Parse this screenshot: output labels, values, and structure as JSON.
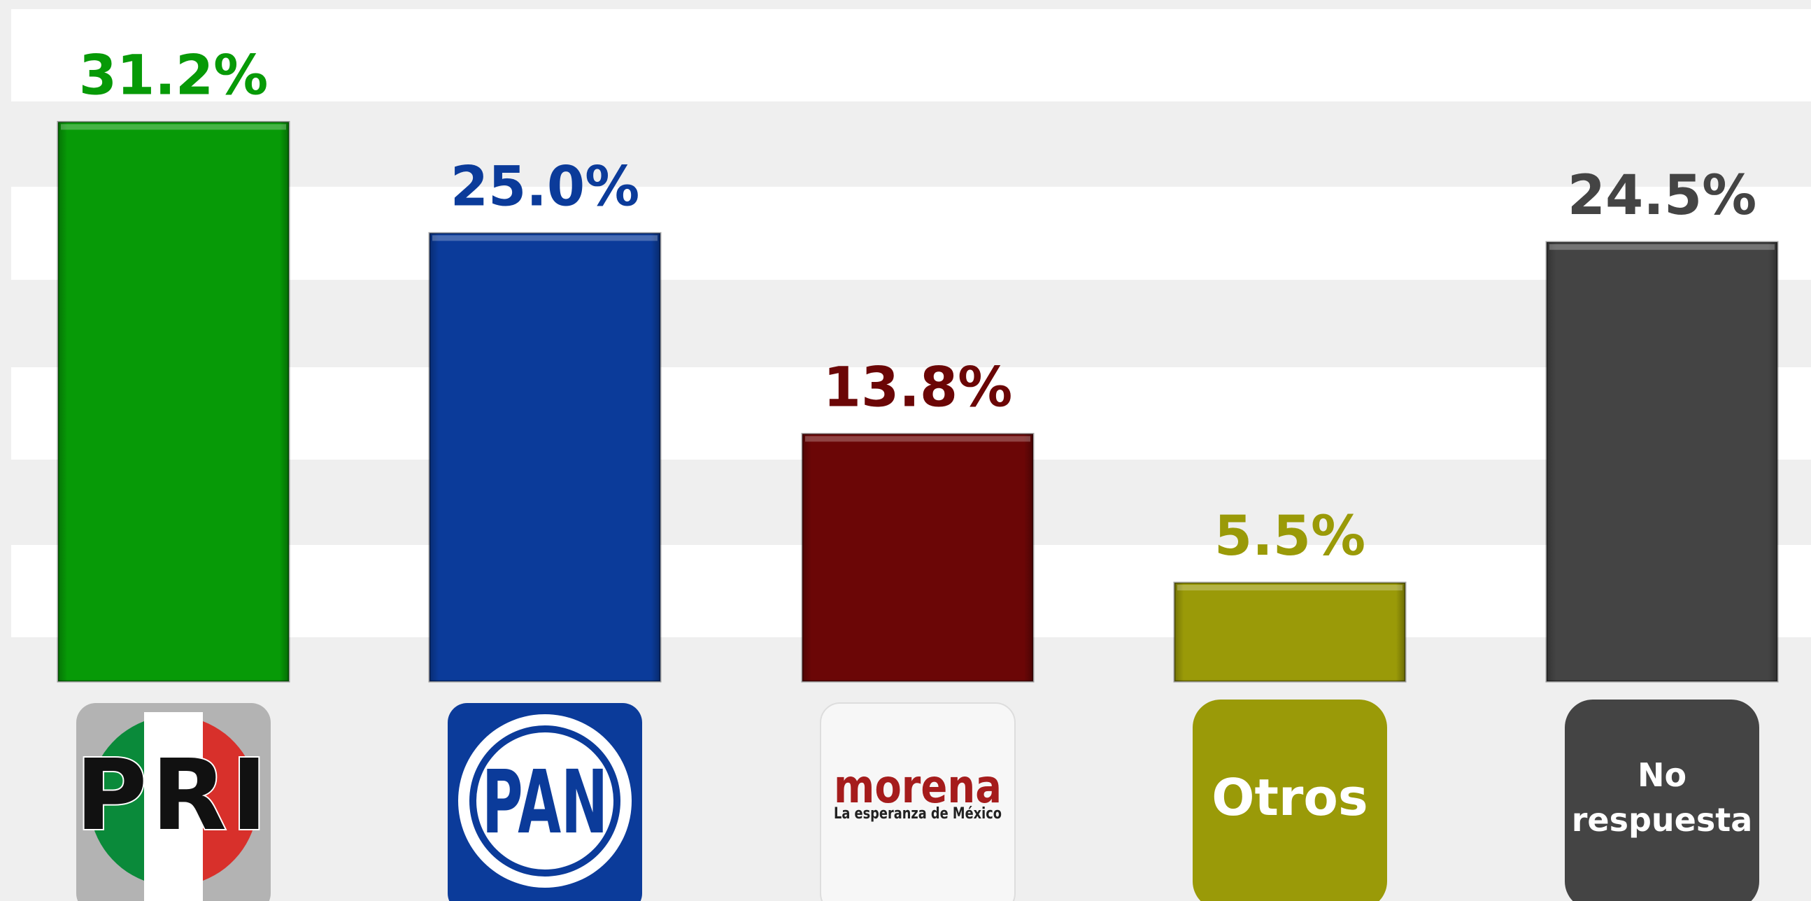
{
  "chart_data": {
    "type": "bar",
    "categories": [
      "PRI",
      "PAN",
      "morena",
      "Otros",
      "No respuesta"
    ],
    "tagline": "La esperanza de México",
    "values": [
      31.2,
      25.0,
      13.8,
      5.5,
      24.5
    ],
    "value_labels": [
      "31.2%",
      "25.0%",
      "13.8%",
      "5.5%",
      "24.5%"
    ],
    "colors": [
      "#079a07",
      "#0b3b9a",
      "#6b0606",
      "#9a9a08",
      "#444444"
    ],
    "ylim": [
      0,
      37.5
    ]
  }
}
